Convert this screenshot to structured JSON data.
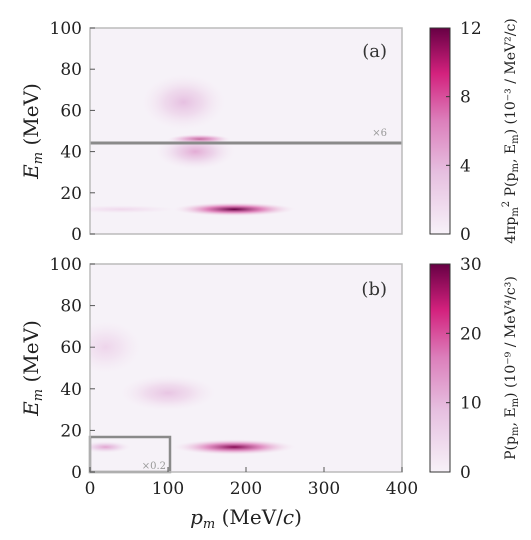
{
  "chart_data": [
    {
      "type": "heatmap",
      "panel_label": "(a)",
      "xlabel": "",
      "ylabel": "E_m (MeV)",
      "xlim": [
        0,
        400
      ],
      "ylim": [
        0,
        100
      ],
      "xticks": [],
      "yticks": [
        "0",
        "20",
        "40",
        "60",
        "80",
        "100"
      ],
      "colorbar": {
        "label": "4πp_m² P(p_m, E_m)  (10⁻³ / MeV²/c)",
        "range": [
          0,
          12
        ],
        "ticks": [
          "0",
          "4",
          "8",
          "12"
        ]
      },
      "inset": {
        "region": "E_m > 45 MeV",
        "scale_label": "×6",
        "x_range": [
          0,
          400
        ],
        "y_range": [
          45,
          100
        ]
      },
      "peaks": [
        {
          "p_m": 185,
          "E_m": 12,
          "value": 12.0
        },
        {
          "p_m": 40,
          "E_m": 12,
          "value": 1.8
        },
        {
          "p_m": 140,
          "E_m": 46,
          "value": 10.5
        },
        {
          "p_m": 135,
          "E_m": 40,
          "value": 4.5
        },
        {
          "p_m": 120,
          "E_m": 64,
          "value": 3.5
        }
      ]
    },
    {
      "type": "heatmap",
      "panel_label": "(b)",
      "xlabel": "p_m (MeV/c)",
      "ylabel": "E_m (MeV)",
      "xlim": [
        0,
        400
      ],
      "ylim": [
        0,
        100
      ],
      "xticks": [
        "0",
        "100",
        "200",
        "300",
        "400"
      ],
      "yticks": [
        "0",
        "20",
        "40",
        "60",
        "80",
        "100"
      ],
      "colorbar": {
        "label": "P(p_m, E_m)  (10⁻⁹ / MeV⁴/c³)",
        "range": [
          0,
          30
        ],
        "ticks": [
          "0",
          "10",
          "20",
          "30"
        ]
      },
      "inset": {
        "region": "p_m < 95 MeV/c, E_m < 20 MeV",
        "scale_label": "×0.2",
        "x_range": [
          0,
          95
        ],
        "y_range": [
          0,
          20
        ]
      },
      "peaks": [
        {
          "p_m": 185,
          "E_m": 12,
          "value": 28
        },
        {
          "p_m": 20,
          "E_m": 12,
          "value": 12
        },
        {
          "p_m": 100,
          "E_m": 38,
          "value": 8
        },
        {
          "p_m": 20,
          "E_m": 60,
          "value": 5
        }
      ]
    }
  ]
}
